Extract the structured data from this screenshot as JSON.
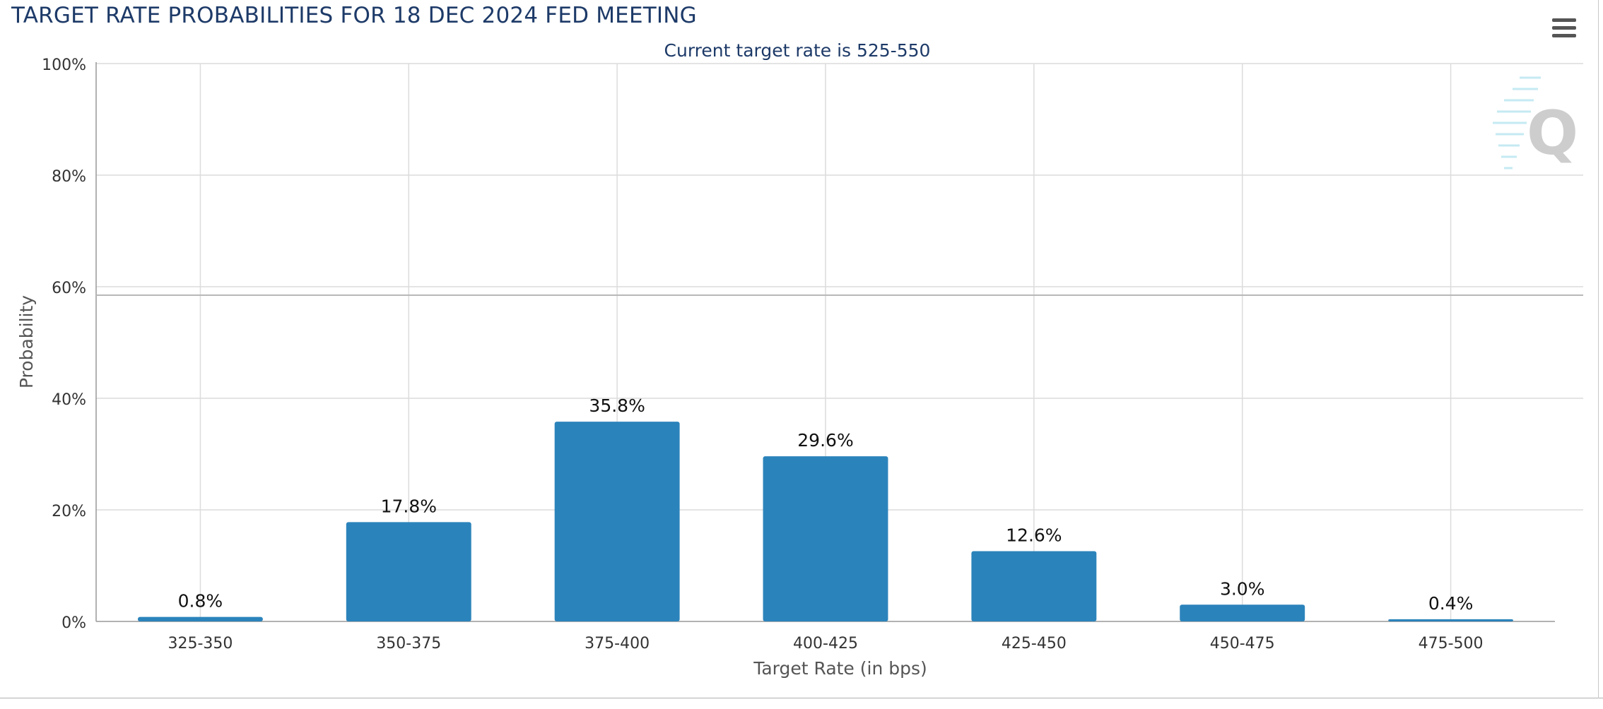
{
  "header": {
    "title": "TARGET RATE PROBABILITIES FOR 18 DEC 2024 FED MEETING",
    "menu_icon": "hamburger-menu-icon"
  },
  "watermark": {
    "letter": "Q"
  },
  "colors": {
    "bar": "#2b83bb",
    "title": "#1d3a68",
    "grid": "#dcdcdc",
    "axis_text": "#333333",
    "axis_title": "#555555"
  },
  "chart_data": {
    "type": "bar",
    "subtitle": "Current target rate is 525-550",
    "categories": [
      "325-350",
      "350-375",
      "375-400",
      "400-425",
      "425-450",
      "450-475",
      "475-500"
    ],
    "values": [
      0.8,
      17.8,
      35.8,
      29.6,
      12.6,
      3.0,
      0.4
    ],
    "data_labels": [
      "0.8%",
      "17.8%",
      "35.8%",
      "29.6%",
      "12.6%",
      "3.0%",
      "0.4%"
    ],
    "xlabel": "Target Rate (in bps)",
    "ylabel": "Probability",
    "ylim": [
      0,
      100
    ],
    "yticks": [
      0,
      20,
      40,
      60,
      80,
      100
    ],
    "ytick_labels": [
      "0%",
      "20%",
      "40%",
      "60%",
      "80%",
      "100%"
    ],
    "grid": true,
    "legend": false
  }
}
